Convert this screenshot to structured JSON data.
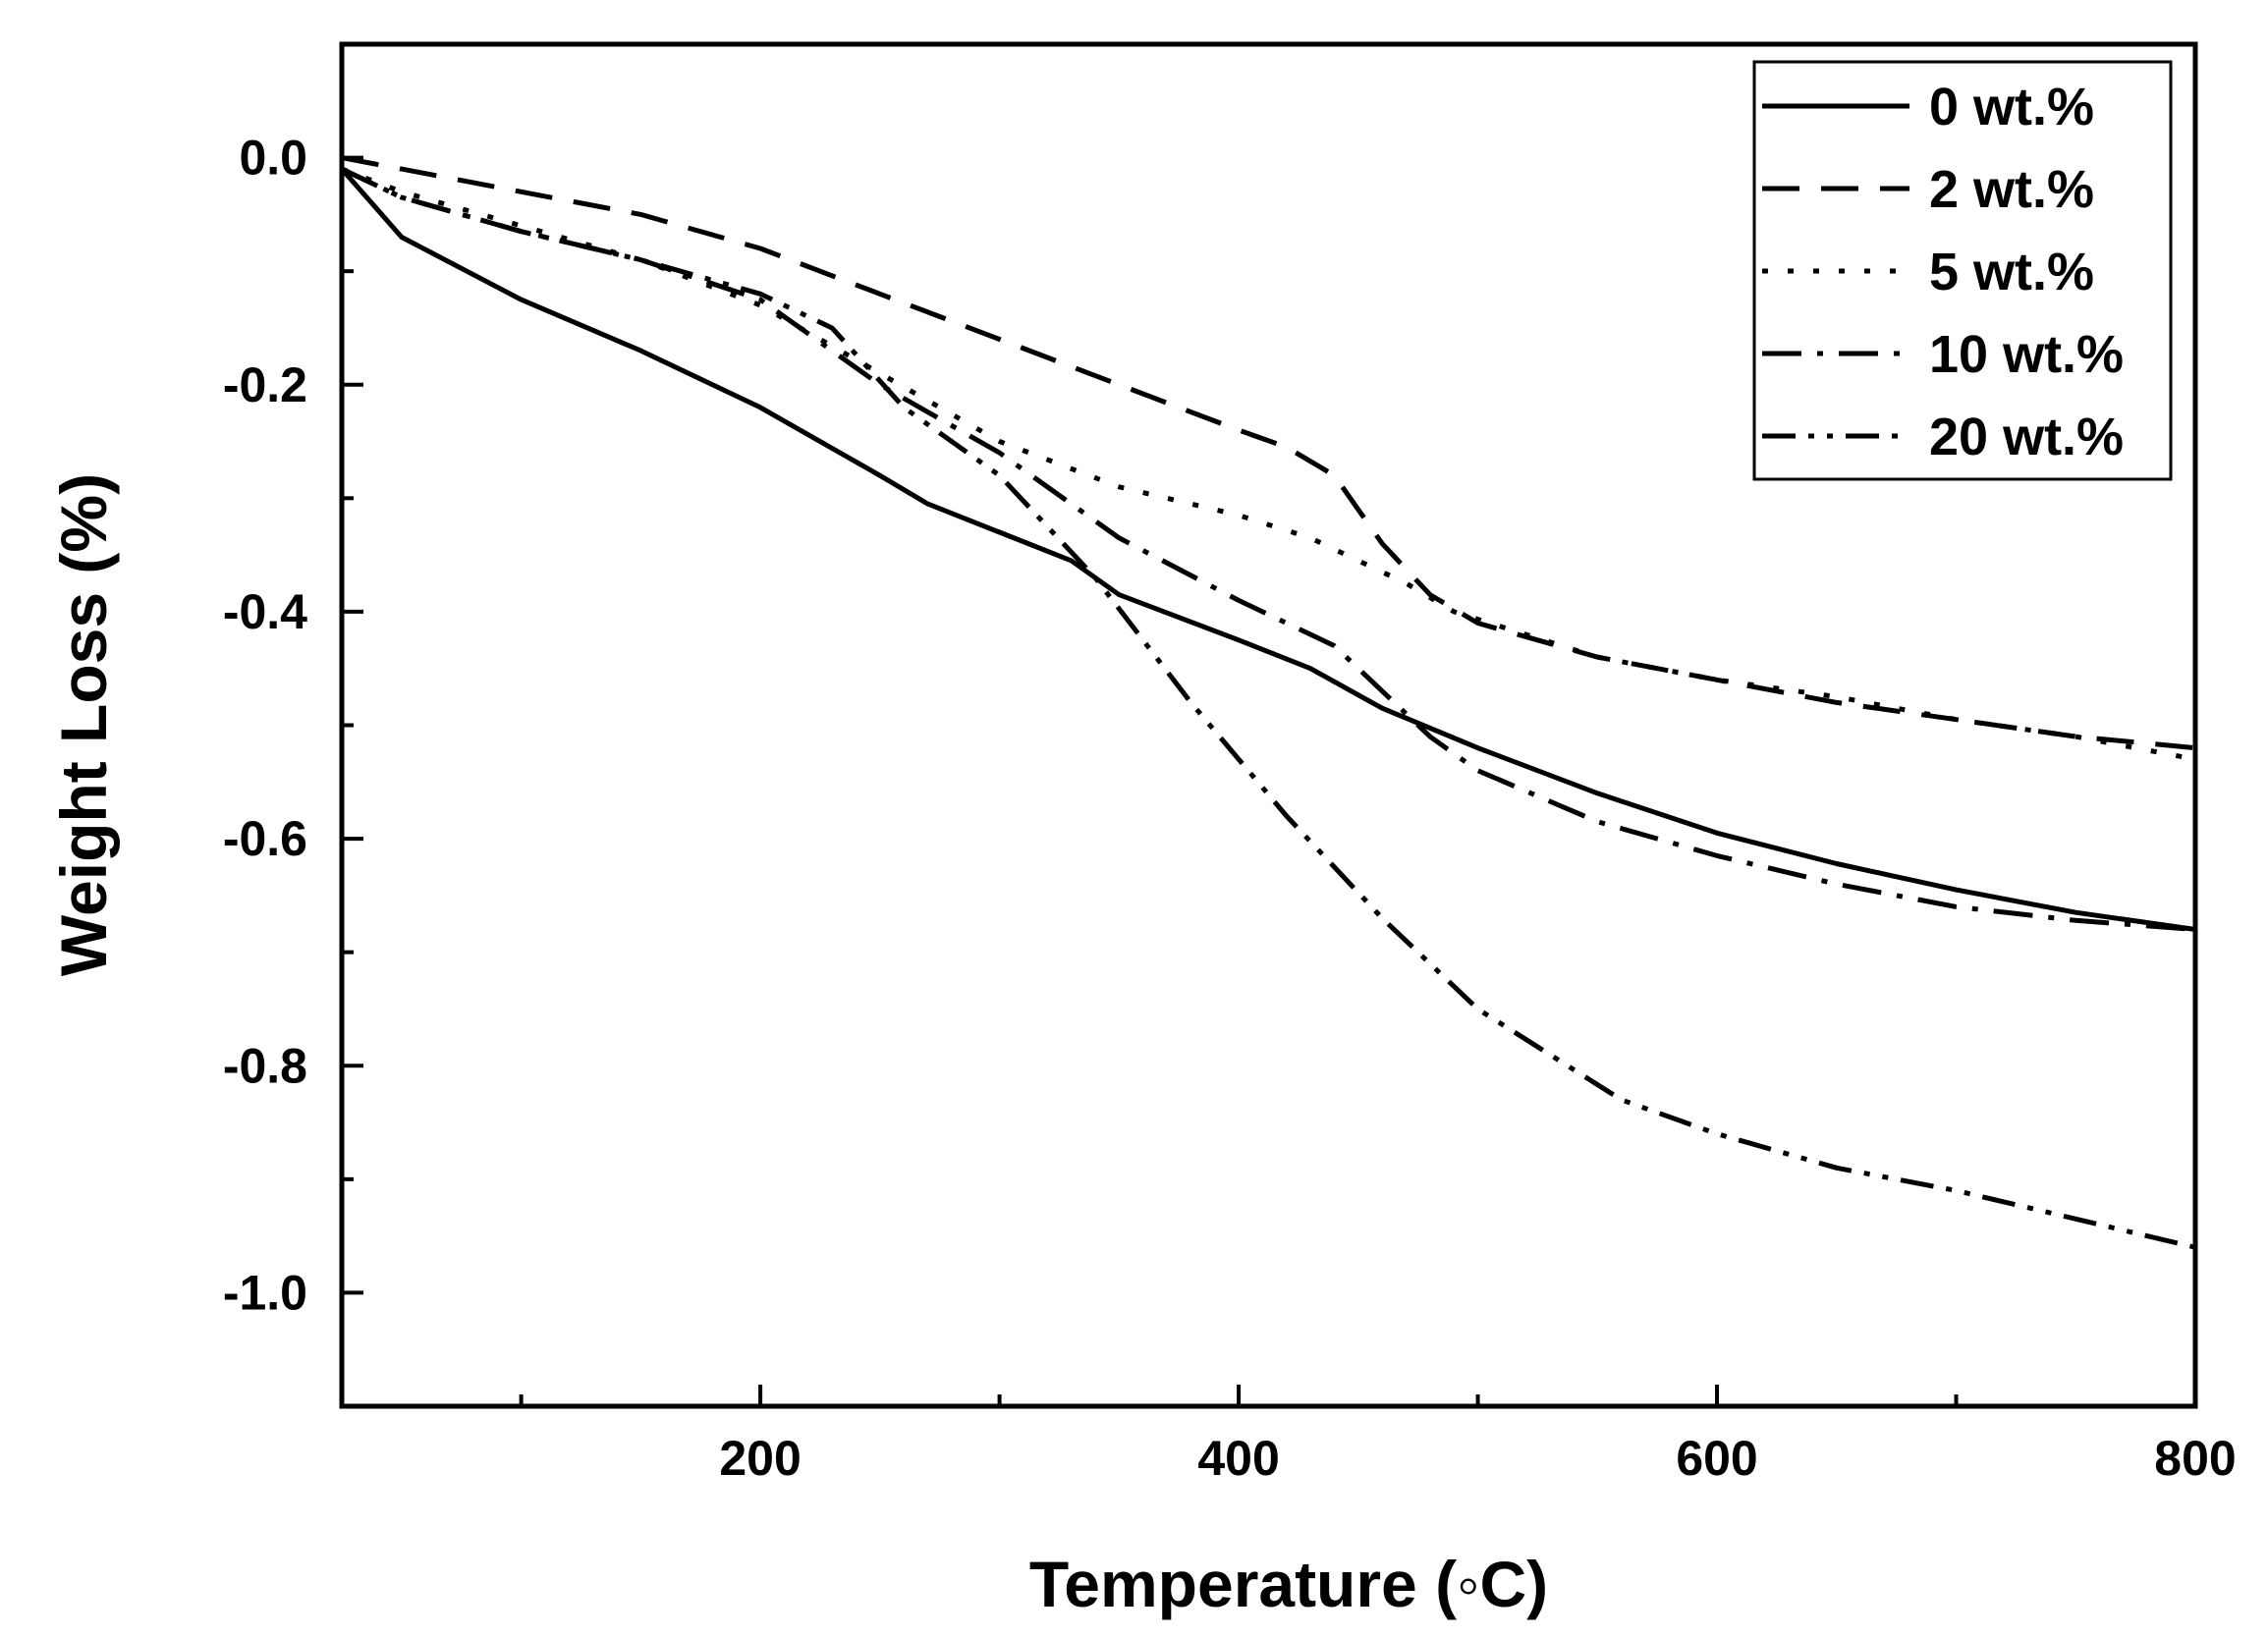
{
  "chart_data": {
    "type": "line",
    "title": "",
    "xlabel": "Temperature (◦C)",
    "ylabel": "Weight Loss (%)",
    "xlim": [
      25,
      800
    ],
    "ylim": [
      -1.1,
      0.1
    ],
    "x_ticks": [
      200,
      400,
      600,
      800
    ],
    "x_tick_labels": [
      "200",
      "400",
      "600",
      "800"
    ],
    "y_ticks": [
      0.0,
      -0.2,
      -0.4,
      -0.6,
      -0.8,
      -1.0
    ],
    "y_tick_labels": [
      "0.0",
      "-0.2",
      "-0.4",
      "-0.6",
      "-0.8",
      "-1.0"
    ],
    "legend_position": "top-right",
    "series": [
      {
        "name": "0 wt.%",
        "style": "solid",
        "x": [
          25,
          50,
          100,
          150,
          200,
          250,
          270,
          300,
          330,
          350,
          400,
          430,
          460,
          500,
          550,
          600,
          650,
          700,
          750,
          800
        ],
        "y": [
          -0.01,
          -0.07,
          -0.125,
          -0.17,
          -0.22,
          -0.28,
          -0.305,
          -0.33,
          -0.355,
          -0.385,
          -0.425,
          -0.45,
          -0.485,
          -0.52,
          -0.56,
          -0.595,
          -0.622,
          -0.645,
          -0.665,
          -0.68
        ]
      },
      {
        "name": "2 wt.%",
        "style": "dashed",
        "x": [
          25,
          50,
          100,
          150,
          200,
          250,
          300,
          350,
          400,
          420,
          440,
          450,
          460,
          480,
          500,
          550,
          600,
          650,
          700,
          750,
          800
        ],
        "y": [
          0.0,
          -0.01,
          -0.03,
          -0.05,
          -0.08,
          -0.12,
          -0.16,
          -0.2,
          -0.24,
          -0.255,
          -0.28,
          -0.31,
          -0.34,
          -0.385,
          -0.41,
          -0.44,
          -0.46,
          -0.48,
          -0.495,
          -0.51,
          -0.52
        ]
      },
      {
        "name": "5 wt.%",
        "style": "dotted",
        "x": [
          25,
          50,
          100,
          150,
          200,
          250,
          300,
          350,
          400,
          430,
          450,
          470,
          490,
          520,
          550,
          600,
          650,
          700,
          750,
          800
        ],
        "y": [
          -0.01,
          -0.03,
          -0.06,
          -0.09,
          -0.13,
          -0.19,
          -0.25,
          -0.29,
          -0.315,
          -0.335,
          -0.355,
          -0.375,
          -0.4,
          -0.42,
          -0.44,
          -0.46,
          -0.475,
          -0.495,
          -0.51,
          -0.53
        ]
      },
      {
        "name": "10 wt.%",
        "style": "dash-dot",
        "x": [
          25,
          50,
          100,
          150,
          200,
          250,
          300,
          350,
          400,
          440,
          460,
          480,
          500,
          550,
          600,
          650,
          700,
          750,
          800
        ],
        "y": [
          -0.01,
          -0.035,
          -0.065,
          -0.09,
          -0.125,
          -0.2,
          -0.26,
          -0.335,
          -0.39,
          -0.43,
          -0.47,
          -0.51,
          -0.54,
          -0.585,
          -0.615,
          -0.64,
          -0.66,
          -0.672,
          -0.68
        ]
      },
      {
        "name": "20 wt.%",
        "style": "dash-dot-dot",
        "x": [
          25,
          50,
          100,
          150,
          200,
          230,
          260,
          300,
          340,
          380,
          420,
          460,
          500,
          530,
          560,
          600,
          650,
          700,
          750,
          800
        ],
        "y": [
          -0.01,
          -0.035,
          -0.065,
          -0.09,
          -0.12,
          -0.15,
          -0.22,
          -0.28,
          -0.37,
          -0.48,
          -0.58,
          -0.67,
          -0.75,
          -0.79,
          -0.83,
          -0.86,
          -0.89,
          -0.91,
          -0.935,
          -0.96
        ]
      }
    ]
  }
}
